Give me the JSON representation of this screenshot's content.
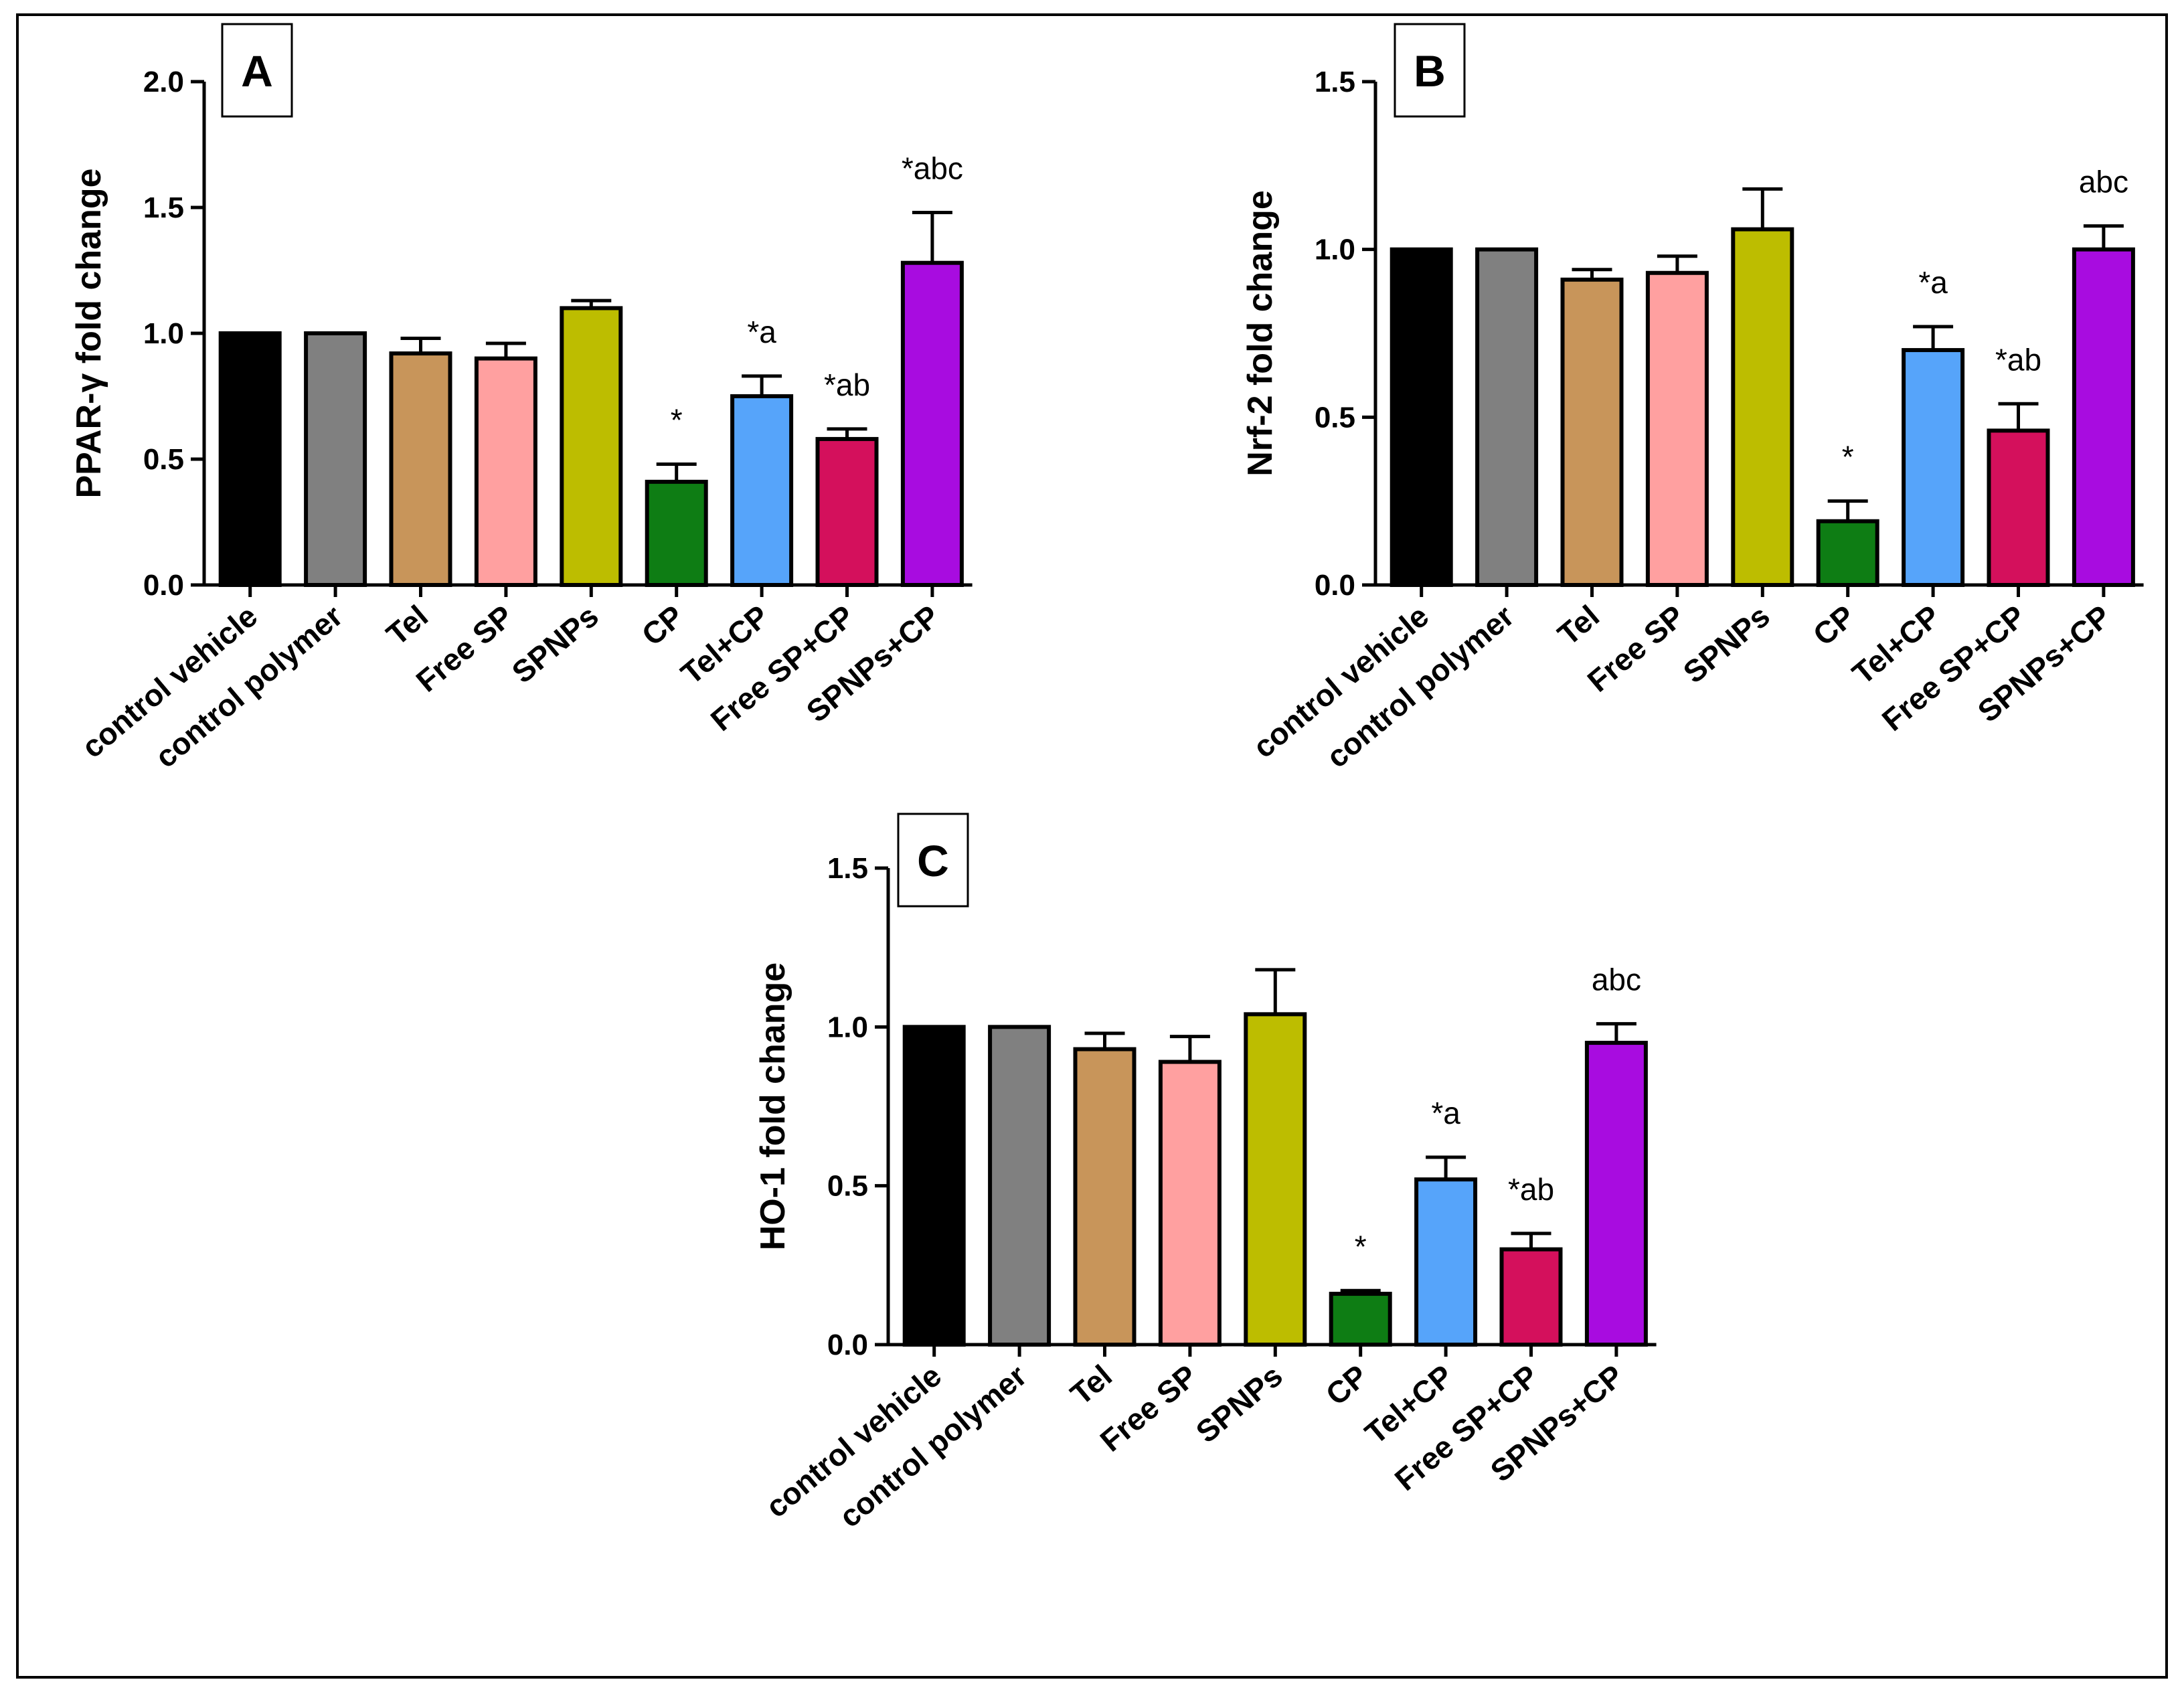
{
  "categories": [
    "control vehicle",
    "control polymer",
    "Tel",
    "Free SP",
    "SPNPs",
    "CP",
    "Tel+CP",
    "Free SP+CP",
    "SPNPs+CP"
  ],
  "colors": [
    "#000000",
    "#808080",
    "#c8955a",
    "#ffa0a0",
    "#bdbd00",
    "#0e7d14",
    "#56a4fa",
    "#d4105c",
    "#a80ce0"
  ],
  "chart_data": [
    {
      "type": "bar",
      "panel": "A",
      "ylabel": "PPAR-γ fold change",
      "ylim": [
        0,
        2.0
      ],
      "yticks": [
        "0.0",
        "0.5",
        "1.0",
        "1.5",
        "2.0"
      ],
      "categories": [
        "control vehicle",
        "control polymer",
        "Tel",
        "Free SP",
        "SPNPs",
        "CP",
        "Tel+CP",
        "Free SP+CP",
        "SPNPs+CP"
      ],
      "values": [
        1.0,
        1.0,
        0.92,
        0.9,
        1.1,
        0.41,
        0.75,
        0.58,
        1.28
      ],
      "errors": [
        0,
        0,
        0.06,
        0.06,
        0.03,
        0.07,
        0.08,
        0.04,
        0.2
      ],
      "annotations": [
        "",
        "",
        "",
        "",
        "",
        "*",
        "*a",
        "*ab",
        "*abc"
      ]
    },
    {
      "type": "bar",
      "panel": "B",
      "ylabel": "Nrf-2 fold change",
      "ylim": [
        0,
        1.5
      ],
      "yticks": [
        "0.0",
        "0.5",
        "1.0",
        "1.5"
      ],
      "categories": [
        "control vehicle",
        "control polymer",
        "Tel",
        "Free SP",
        "SPNPs",
        "CP",
        "Tel+CP",
        "Free SP+CP",
        "SPNPs+CP"
      ],
      "values": [
        1.0,
        1.0,
        0.91,
        0.93,
        1.06,
        0.19,
        0.7,
        0.46,
        1.0
      ],
      "errors": [
        0,
        0,
        0.03,
        0.05,
        0.12,
        0.06,
        0.07,
        0.08,
        0.07
      ],
      "annotations": [
        "",
        "",
        "",
        "",
        "",
        "*",
        "*a",
        "*ab",
        "abc"
      ]
    },
    {
      "type": "bar",
      "panel": "C",
      "ylabel": "HO-1 fold change",
      "ylim": [
        0,
        1.5
      ],
      "yticks": [
        "0.0",
        "0.5",
        "1.0",
        "1.5"
      ],
      "categories": [
        "control vehicle",
        "control polymer",
        "Tel",
        "Free SP",
        "SPNPs",
        "CP",
        "Tel+CP",
        "Free SP+CP",
        "SPNPs+CP"
      ],
      "values": [
        1.0,
        1.0,
        0.93,
        0.89,
        1.04,
        0.16,
        0.52,
        0.3,
        0.95
      ],
      "errors": [
        0,
        0,
        0.05,
        0.08,
        0.14,
        0.01,
        0.07,
        0.05,
        0.06
      ],
      "annotations": [
        "",
        "",
        "",
        "",
        "",
        "*",
        "*a",
        "*ab",
        "abc"
      ]
    }
  ]
}
